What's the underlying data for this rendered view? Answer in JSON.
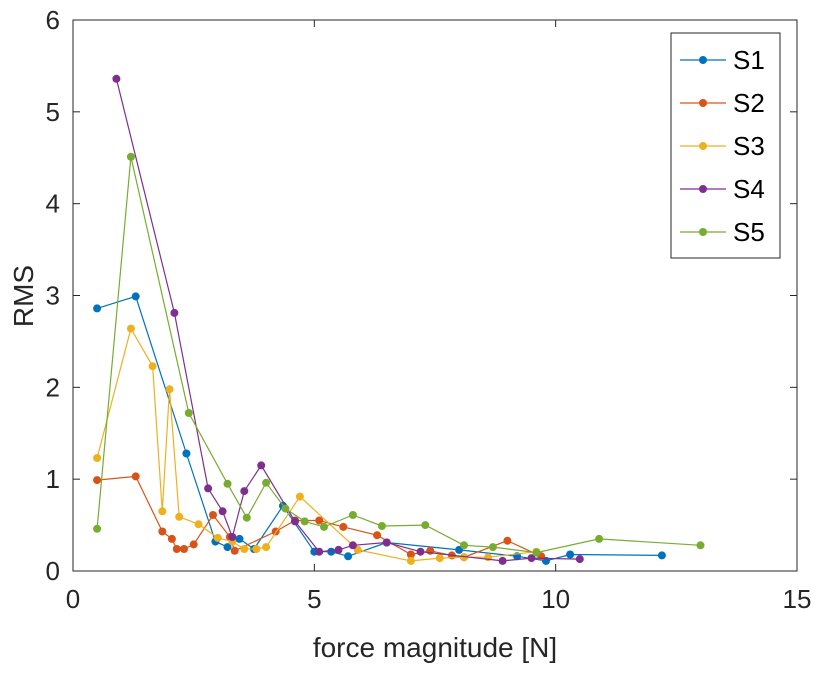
{
  "chart_data": {
    "type": "line",
    "title": "",
    "xlabel": "force magnitude [N]",
    "ylabel": "RMS",
    "xlim": [
      0,
      15
    ],
    "ylim": [
      0,
      6
    ],
    "xticks": [
      0,
      5,
      10,
      15
    ],
    "yticks": [
      0,
      1,
      2,
      3,
      4,
      5,
      6
    ],
    "xtick_labels": [
      "0",
      "5",
      "10",
      "15"
    ],
    "ytick_labels": [
      "0",
      "1",
      "2",
      "3",
      "4",
      "5",
      "6"
    ],
    "grid": false,
    "legend": "top-right",
    "series": [
      {
        "name": "S1",
        "color": "#0072BD",
        "points": [
          [
            0.5,
            2.86
          ],
          [
            1.3,
            2.99
          ],
          [
            2.35,
            1.28
          ],
          [
            2.95,
            0.32
          ],
          [
            3.2,
            0.26
          ],
          [
            3.45,
            0.35
          ],
          [
            3.75,
            0.24
          ],
          [
            4.35,
            0.71
          ],
          [
            5.0,
            0.21
          ],
          [
            5.35,
            0.21
          ],
          [
            5.7,
            0.16
          ],
          [
            6.5,
            0.31
          ],
          [
            8.0,
            0.23
          ],
          [
            9.2,
            0.16
          ],
          [
            9.8,
            0.11
          ],
          [
            10.3,
            0.18
          ],
          [
            12.2,
            0.17
          ]
        ]
      },
      {
        "name": "S2",
        "color": "#D95319",
        "points": [
          [
            0.5,
            0.99
          ],
          [
            1.3,
            1.03
          ],
          [
            1.85,
            0.43
          ],
          [
            2.05,
            0.35
          ],
          [
            2.15,
            0.24
          ],
          [
            2.3,
            0.24
          ],
          [
            2.5,
            0.29
          ],
          [
            2.9,
            0.61
          ],
          [
            3.25,
            0.37
          ],
          [
            3.35,
            0.22
          ],
          [
            4.2,
            0.43
          ],
          [
            4.6,
            0.55
          ],
          [
            5.1,
            0.55
          ],
          [
            5.6,
            0.48
          ],
          [
            6.3,
            0.39
          ],
          [
            7.0,
            0.18
          ],
          [
            7.4,
            0.22
          ],
          [
            7.85,
            0.17
          ],
          [
            8.1,
            0.15
          ],
          [
            9.0,
            0.33
          ],
          [
            9.7,
            0.16
          ]
        ]
      },
      {
        "name": "S3",
        "color": "#EDB120",
        "points": [
          [
            0.5,
            1.23
          ],
          [
            1.2,
            2.64
          ],
          [
            1.65,
            2.23
          ],
          [
            1.85,
            0.65
          ],
          [
            2.0,
            1.98
          ],
          [
            2.2,
            0.59
          ],
          [
            2.6,
            0.51
          ],
          [
            3.0,
            0.36
          ],
          [
            3.3,
            0.32
          ],
          [
            3.55,
            0.24
          ],
          [
            3.8,
            0.24
          ],
          [
            4.0,
            0.26
          ],
          [
            4.7,
            0.81
          ],
          [
            5.9,
            0.23
          ],
          [
            7.0,
            0.11
          ],
          [
            7.6,
            0.14
          ],
          [
            8.1,
            0.15
          ],
          [
            8.6,
            0.15
          ],
          [
            9.6,
            0.21
          ]
        ]
      },
      {
        "name": "S4",
        "color": "#7E2F8E",
        "points": [
          [
            0.9,
            5.36
          ],
          [
            2.1,
            2.81
          ],
          [
            2.8,
            0.9
          ],
          [
            3.1,
            0.65
          ],
          [
            3.3,
            0.37
          ],
          [
            3.55,
            0.87
          ],
          [
            3.9,
            1.15
          ],
          [
            4.6,
            0.54
          ],
          [
            5.1,
            0.21
          ],
          [
            5.5,
            0.23
          ],
          [
            5.8,
            0.28
          ],
          [
            6.5,
            0.31
          ],
          [
            7.2,
            0.21
          ],
          [
            8.9,
            0.11
          ],
          [
            9.5,
            0.14
          ],
          [
            10.5,
            0.13
          ]
        ]
      },
      {
        "name": "S5",
        "color": "#77AC30",
        "points": [
          [
            0.5,
            0.46
          ],
          [
            1.2,
            4.51
          ],
          [
            2.4,
            1.72
          ],
          [
            3.2,
            0.95
          ],
          [
            3.6,
            0.58
          ],
          [
            4.0,
            0.96
          ],
          [
            4.4,
            0.68
          ],
          [
            4.8,
            0.54
          ],
          [
            5.2,
            0.48
          ],
          [
            5.8,
            0.61
          ],
          [
            6.4,
            0.49
          ],
          [
            7.3,
            0.5
          ],
          [
            8.1,
            0.28
          ],
          [
            8.7,
            0.26
          ],
          [
            9.6,
            0.2
          ],
          [
            10.9,
            0.35
          ],
          [
            13.0,
            0.28
          ]
        ]
      }
    ]
  }
}
